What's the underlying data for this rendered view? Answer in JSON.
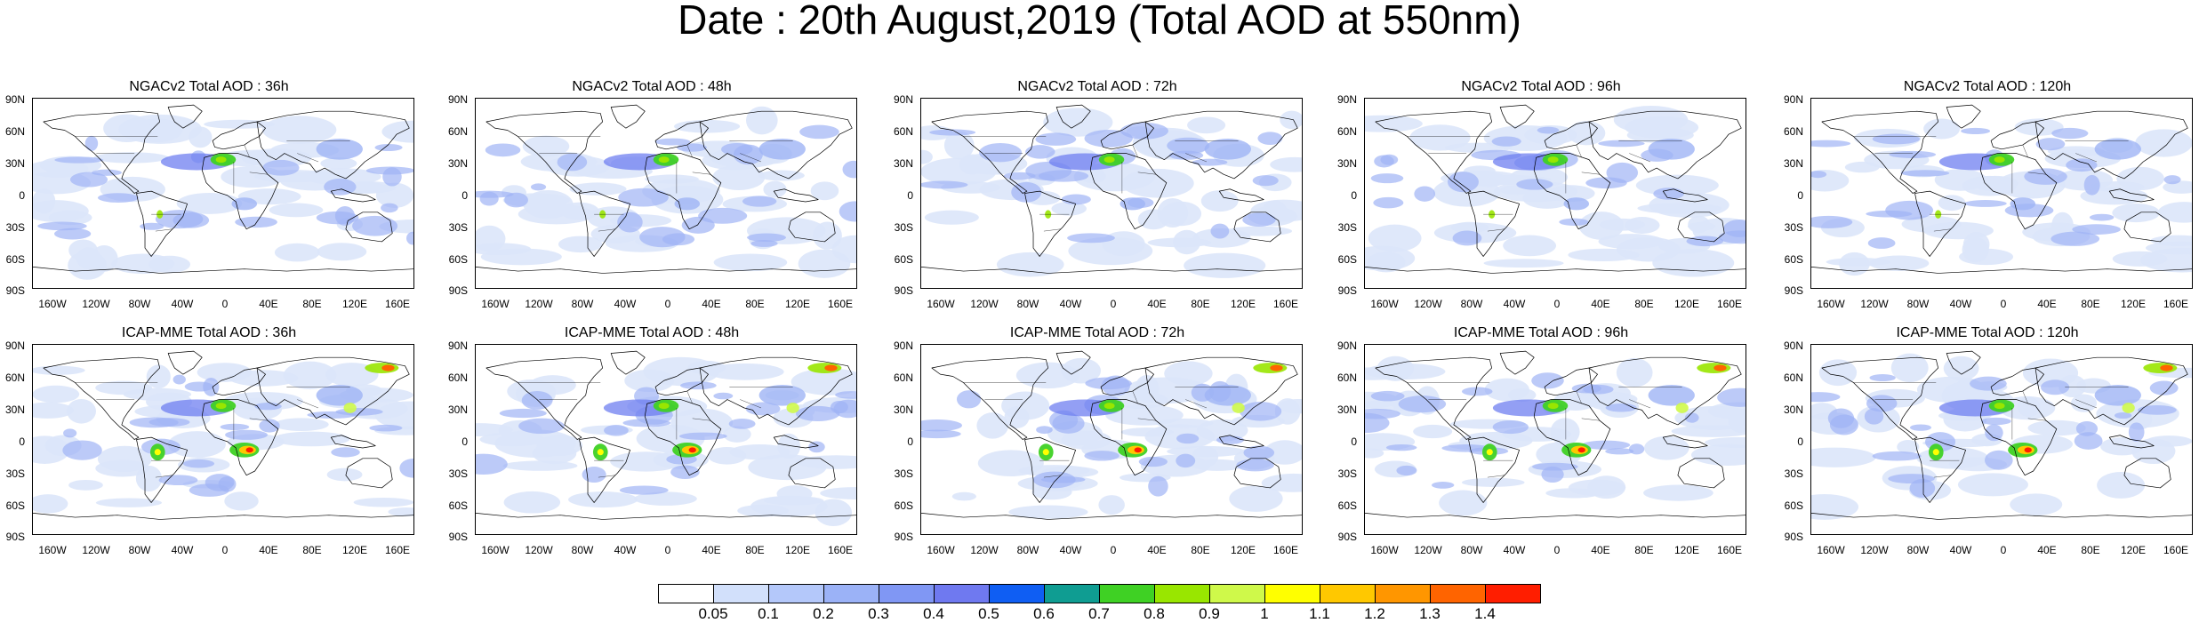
{
  "title": "Date : 20th August,2019 (Total AOD at 550nm)",
  "lat_labels": [
    "90N",
    "60N",
    "30N",
    "0",
    "30S",
    "60S",
    "90S"
  ],
  "lon_labels": [
    "160W",
    "120W",
    "80W",
    "40W",
    "0",
    "40E",
    "80E",
    "120E",
    "160E"
  ],
  "panels": [
    {
      "title": "NGACv2 Total AOD : 36h"
    },
    {
      "title": "NGACv2 Total AOD : 48h"
    },
    {
      "title": "NGACv2 Total AOD : 72h"
    },
    {
      "title": "NGACv2 Total AOD : 96h"
    },
    {
      "title": "NGACv2 Total AOD : 120h"
    },
    {
      "title": "ICAP-MME Total AOD : 36h"
    },
    {
      "title": "ICAP-MME Total AOD : 48h"
    },
    {
      "title": "ICAP-MME Total AOD : 72h"
    },
    {
      "title": "ICAP-MME Total AOD : 96h"
    },
    {
      "title": "ICAP-MME Total AOD : 120h"
    }
  ],
  "colorbar": {
    "labels": [
      "0.05",
      "0.1",
      "0.2",
      "0.3",
      "0.4",
      "0.5",
      "0.6",
      "0.7",
      "0.8",
      "0.9",
      "1",
      "1.1",
      "1.2",
      "1.3",
      "1.4"
    ],
    "colors": [
      "#ffffff",
      "#d2e0fb",
      "#b4c8fa",
      "#9bb2f7",
      "#8097f4",
      "#6f79f0",
      "#0f5ef3",
      "#0f9d92",
      "#3fd124",
      "#99e600",
      "#cff94a",
      "#ffff00",
      "#ffc800",
      "#ff9600",
      "#ff6400",
      "#ff1e00"
    ]
  },
  "colors": {
    "ocean_light": "#dbe5fa",
    "aod_medium": "#9fb4f5",
    "aod_dense": "#6f7ff0",
    "coast": "#000000"
  }
}
